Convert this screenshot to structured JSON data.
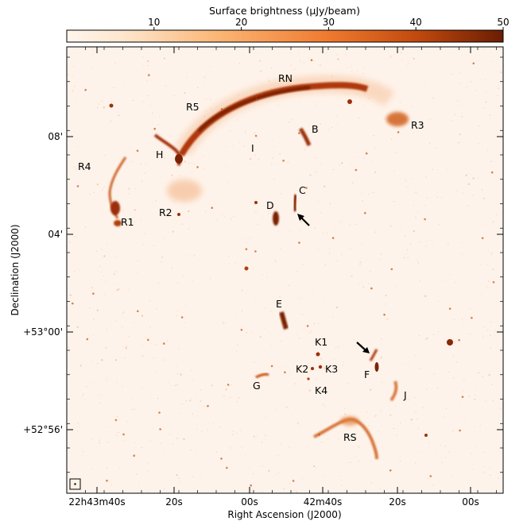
{
  "colorbar": {
    "title": "Surface brightness (µJy/beam)",
    "ticks": [
      {
        "value": 10,
        "label": "10"
      },
      {
        "value": 20,
        "label": "20"
      },
      {
        "value": 30,
        "label": "30"
      },
      {
        "value": 40,
        "label": "40"
      },
      {
        "value": 50,
        "label": "50"
      }
    ],
    "colors": [
      "#fff4e6",
      "#fdd8b0",
      "#f9a35a",
      "#e8641c",
      "#b83a08",
      "#6e1e04"
    ]
  },
  "axes": {
    "xlabel": "Right Ascension (J2000)",
    "ylabel": "Declination (J2000)",
    "xticks": [
      "22h43m40s",
      "20s",
      "00s",
      "42m40s",
      "20s",
      "00s"
    ],
    "yticks": [
      "08'",
      "04'",
      "+53°00'",
      "+52°56'"
    ]
  },
  "labels": {
    "RN": "RN",
    "R5": "R5",
    "R3": "R3",
    "R4": "R4",
    "R1": "R1",
    "R2": "R2",
    "B": "B",
    "H": "H",
    "I": "I",
    "C": "C",
    "D": "D",
    "E": "E",
    "K1": "K1",
    "K2": "K2",
    "K3": "K3",
    "K4": "K4",
    "F": "F",
    "G": "G",
    "J": "J",
    "RS": "RS"
  },
  "image": {
    "background": "#fef3ea",
    "emission_color": "#b53d0b",
    "faint_color": "#e9894a"
  }
}
